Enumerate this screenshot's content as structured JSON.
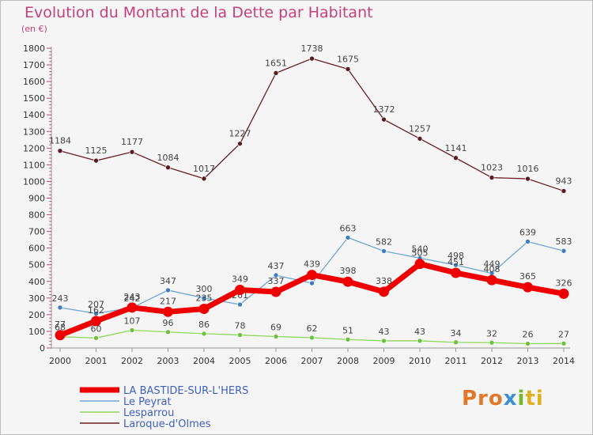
{
  "title": "Evolution du Montant de la Dette par Habitant",
  "subtitle": "(en €)",
  "logo": "Proxiti",
  "chart_data": {
    "type": "line",
    "x": [
      "2000",
      "2001",
      "2002",
      "2003",
      "2004",
      "2005",
      "2006",
      "2007",
      "2008",
      "2009",
      "2010",
      "2011",
      "2012",
      "2013",
      "2014"
    ],
    "ylim": [
      0,
      1800
    ],
    "yticks": [
      0,
      100,
      200,
      300,
      400,
      500,
      600,
      700,
      800,
      900,
      1000,
      1100,
      1200,
      1300,
      1400,
      1500,
      1600,
      1700,
      1800
    ],
    "grid": false,
    "legend_position": "bottom-left",
    "series": [
      {
        "name": "Laroque-d'Olmes",
        "color": "#6b1f24",
        "values": [
          1184,
          1125,
          1177,
          1084,
          1017,
          1227,
          1651,
          1738,
          1675,
          1372,
          1257,
          1141,
          1023,
          1016,
          943
        ]
      },
      {
        "name": "Le Peyrat",
        "color": "#6ea6d6",
        "values": [
          243,
          207,
          242,
          347,
          300,
          261,
          437,
          389,
          663,
          582,
          540,
          498,
          449,
          639,
          583
        ],
        "labels": [
          "243",
          "207",
          "242",
          "347",
          "300",
          "261",
          "437",
          "",
          "663",
          "582",
          "540",
          "498",
          "449",
          "639",
          "583"
        ]
      },
      {
        "name": "Lesparrou",
        "color": "#8ed85a",
        "values": [
          68,
          60,
          107,
          96,
          86,
          78,
          69,
          62,
          51,
          43,
          43,
          34,
          32,
          26,
          27
        ],
        "labels": [
          "68",
          "60",
          "107",
          "96",
          "86",
          "78",
          "69",
          "62",
          "51",
          "43",
          "43",
          "34",
          "32",
          "26",
          "27"
        ]
      },
      {
        "name": "LA BASTIDE-SUR-L'HERS",
        "color": "#ee0000",
        "values": [
          77,
          162,
          243,
          217,
          235,
          349,
          337,
          439,
          398,
          338,
          505,
          451,
          408,
          365,
          326
        ],
        "labels": [
          "77",
          "162",
          "243",
          "217",
          "235",
          "349",
          "337",
          "439",
          "398",
          "338",
          "505",
          "451",
          "408",
          "365",
          "326"
        ]
      }
    ],
    "legend_order": [
      "LA BASTIDE-SUR-L'HERS",
      "Le Peyrat",
      "Lesparrou",
      "Laroque-d'Olmes"
    ]
  }
}
